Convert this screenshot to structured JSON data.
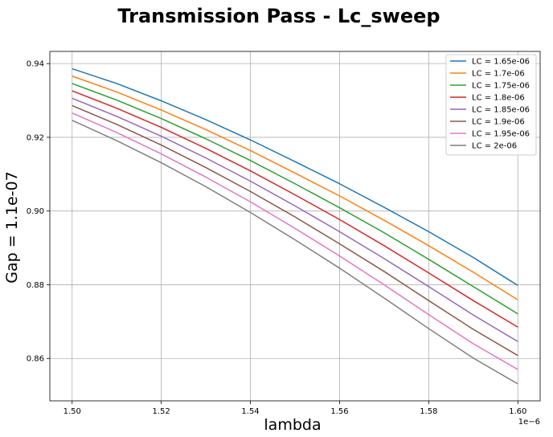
{
  "chart_data": {
    "type": "line",
    "title": "Transmission Pass - Lc_sweep",
    "xlabel": "lambda",
    "ylabel": "Gap = 1.1e-07",
    "x_offset_text": "1e−6",
    "xlim": [
      1.495,
      1.605
    ],
    "ylim": [
      0.8485,
      0.9433
    ],
    "xticks": [
      1.5,
      1.52,
      1.54,
      1.56,
      1.58,
      1.6
    ],
    "xtick_labels": [
      "1.50",
      "1.52",
      "1.54",
      "1.56",
      "1.58",
      "1.60"
    ],
    "yticks": [
      0.86,
      0.88,
      0.9,
      0.92,
      0.94
    ],
    "ytick_labels": [
      "0.86",
      "0.88",
      "0.90",
      "0.92",
      "0.94"
    ],
    "grid": true,
    "legend_position": "top-right",
    "x": [
      1.5,
      1.51,
      1.52,
      1.53,
      1.54,
      1.55,
      1.56,
      1.57,
      1.58,
      1.59,
      1.6
    ],
    "series": [
      {
        "name": "LC = 1.65e-06",
        "color": "#1f77b4",
        "values": [
          0.9386,
          0.9346,
          0.9299,
          0.9248,
          0.9193,
          0.9134,
          0.9074,
          0.901,
          0.8944,
          0.8874,
          0.8798
        ]
      },
      {
        "name": "LC = 1.7e-06",
        "color": "#ff7f0e",
        "values": [
          0.9366,
          0.9323,
          0.9274,
          0.9221,
          0.9164,
          0.9103,
          0.9041,
          0.8975,
          0.8906,
          0.8834,
          0.8759
        ]
      },
      {
        "name": "LC = 1.75e-06",
        "color": "#2ca02c",
        "values": [
          0.9346,
          0.9301,
          0.9251,
          0.9196,
          0.9137,
          0.9074,
          0.9009,
          0.8941,
          0.8869,
          0.8795,
          0.8721
        ]
      },
      {
        "name": "LC = 1.8e-06",
        "color": "#d62728",
        "values": [
          0.9326,
          0.9279,
          0.9227,
          0.917,
          0.9109,
          0.9044,
          0.8977,
          0.8906,
          0.8832,
          0.8757,
          0.8685
        ]
      },
      {
        "name": "LC = 1.85e-06",
        "color": "#9467bd",
        "values": [
          0.9306,
          0.9257,
          0.9203,
          0.9144,
          0.9081,
          0.9014,
          0.8944,
          0.8871,
          0.8795,
          0.8718,
          0.8646
        ]
      },
      {
        "name": "LC = 1.9e-06",
        "color": "#8c564b",
        "values": [
          0.9286,
          0.9235,
          0.9179,
          0.9118,
          0.9053,
          0.8984,
          0.8911,
          0.8836,
          0.8757,
          0.8679,
          0.8608
        ]
      },
      {
        "name": "LC = 1.95e-06",
        "color": "#e377c2",
        "values": [
          0.9266,
          0.9213,
          0.9155,
          0.9092,
          0.9025,
          0.8953,
          0.8878,
          0.88,
          0.8719,
          0.864,
          0.857
        ]
      },
      {
        "name": "LC = 2e-06",
        "color": "#7f7f7f",
        "values": [
          0.9246,
          0.9191,
          0.9131,
          0.9066,
          0.8996,
          0.8922,
          0.8845,
          0.8764,
          0.8681,
          0.8601,
          0.8531
        ]
      }
    ]
  }
}
